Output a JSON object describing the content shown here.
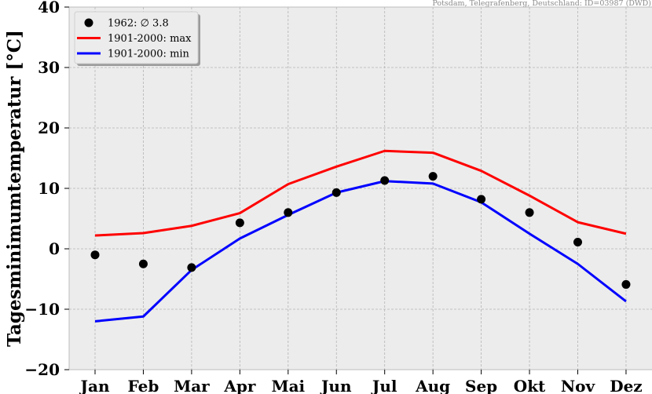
{
  "source_note": "Potsdam, Telegrafenberg, Deutschland: ID=03987 (DWD)",
  "colors": {
    "background": "#ececec",
    "grid": "#b4b4b4",
    "observed": "#000000",
    "max": "#ff0000",
    "min": "#0000ff"
  },
  "chart_data": {
    "type": "line",
    "ylabel": "Tagesminimumtemperatur [°C]",
    "categories": [
      "Jan",
      "Feb",
      "Mar",
      "Apr",
      "Mai",
      "Jun",
      "Jul",
      "Aug",
      "Sep",
      "Okt",
      "Nov",
      "Dez"
    ],
    "ylim": [
      -20,
      40
    ],
    "yticks": [
      -20,
      -10,
      0,
      10,
      20,
      30,
      40
    ],
    "grid": true,
    "legend_position": "top-left",
    "series": [
      {
        "name": "1962: ∅ 3.8",
        "style": "points",
        "color": "#000000",
        "values": [
          -1.0,
          -2.5,
          -3.1,
          4.3,
          6.0,
          9.3,
          11.3,
          12.0,
          8.2,
          6.0,
          1.1,
          -5.9
        ]
      },
      {
        "name": "1901-2000: max",
        "style": "line",
        "color": "#ff0000",
        "values": [
          2.2,
          2.6,
          3.8,
          5.9,
          10.7,
          13.6,
          16.2,
          15.9,
          12.9,
          8.8,
          4.4,
          2.5
        ]
      },
      {
        "name": "1901-2000: min",
        "style": "line",
        "color": "#0000ff",
        "values": [
          -12.0,
          -11.2,
          -3.5,
          1.7,
          5.6,
          9.3,
          11.2,
          10.8,
          7.7,
          2.5,
          -2.5,
          -8.7
        ]
      }
    ]
  }
}
